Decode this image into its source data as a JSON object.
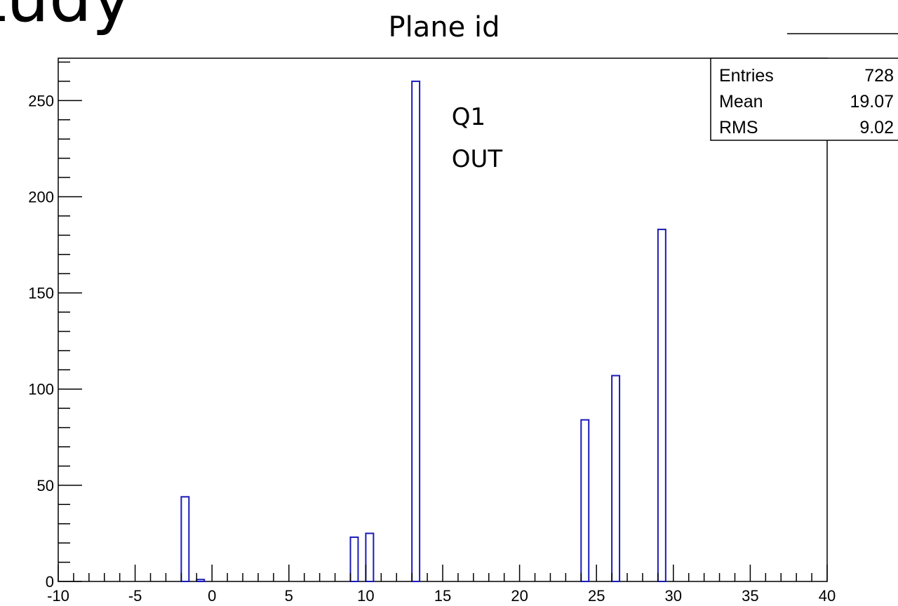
{
  "slide": {
    "title_fragment": "s Study",
    "subtitle": "Plane id"
  },
  "chart_data": {
    "type": "bar",
    "title": "",
    "xlabel": "",
    "ylabel": "",
    "xlim": [
      -10,
      40
    ],
    "ylim": [
      0,
      272
    ],
    "x_ticks": [
      -10,
      -5,
      0,
      5,
      10,
      15,
      20,
      25,
      30,
      35,
      40
    ],
    "y_ticks": [
      0,
      50,
      100,
      150,
      200,
      250
    ],
    "x_tick_labels": [
      "-10",
      "-5",
      "0",
      "5",
      "10",
      "15",
      "20",
      "25",
      "30",
      "35",
      "40"
    ],
    "y_tick_labels": [
      "0",
      "50",
      "100",
      "150",
      "200",
      "250"
    ],
    "bars": [
      {
        "x": -1.75,
        "value": 44
      },
      {
        "x": -0.75,
        "value": 1
      },
      {
        "x": 9.25,
        "value": 23
      },
      {
        "x": 10.25,
        "value": 25
      },
      {
        "x": 13.25,
        "value": 260
      },
      {
        "x": 24.25,
        "value": 84
      },
      {
        "x": 26.25,
        "value": 107
      },
      {
        "x": 29.25,
        "value": 183
      }
    ],
    "bar_color": "#1a1ab8",
    "annotation": [
      "Q1",
      "OUT"
    ],
    "stats": {
      "rows": [
        {
          "label": "Entries",
          "value": "728"
        },
        {
          "label": "Mean",
          "value": "19.07"
        },
        {
          "label": "RMS",
          "value": "9.02"
        }
      ]
    },
    "grid": false
  }
}
